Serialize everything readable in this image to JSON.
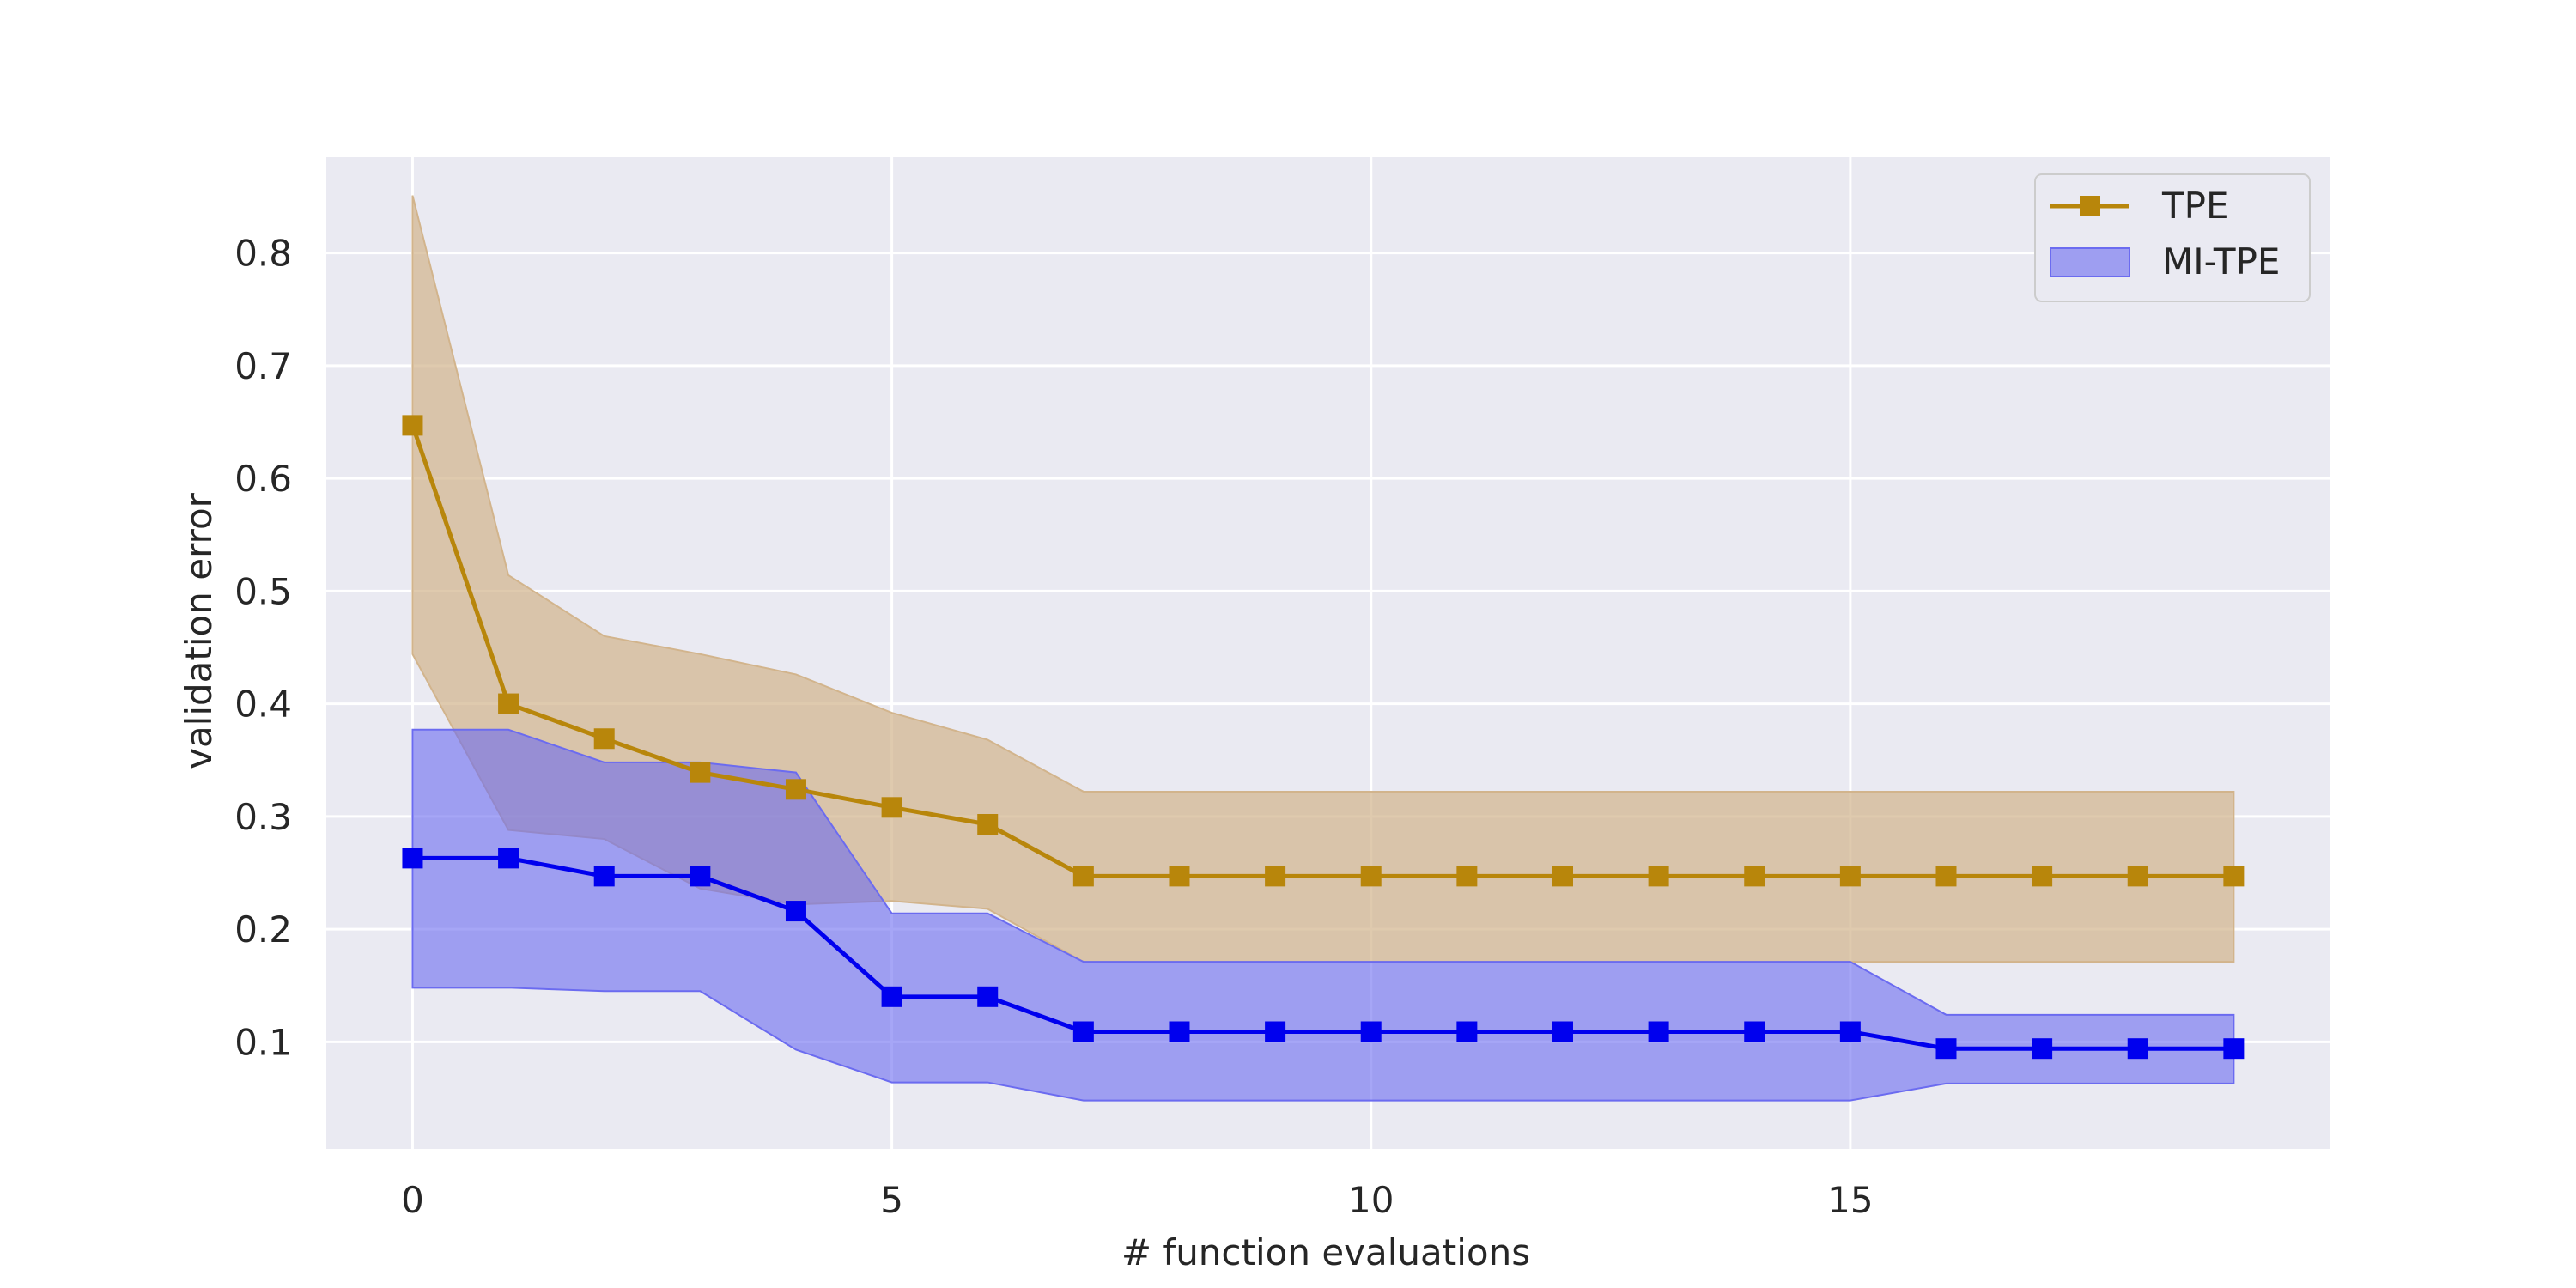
{
  "chart_data": {
    "type": "line",
    "title": "",
    "xlabel": "# function evaluations",
    "ylabel": "validation error",
    "xlim": [
      -0.9,
      20
    ],
    "ylim": [
      0.005,
      0.885
    ],
    "xticks": [
      0,
      5,
      10,
      15
    ],
    "yticks": [
      0.1,
      0.2,
      0.3,
      0.4,
      0.5,
      0.6,
      0.7,
      0.8
    ],
    "xtick_labels": [
      "0",
      "5",
      "10",
      "15"
    ],
    "ytick_labels": [
      "0.1",
      "0.2",
      "0.3",
      "0.4",
      "0.5",
      "0.6",
      "0.7",
      "0.8"
    ],
    "grid": true,
    "legend_position": "top-right",
    "x": [
      0,
      1,
      2,
      3,
      4,
      5,
      6,
      7,
      8,
      9,
      10,
      11,
      12,
      13,
      14,
      15,
      16,
      17,
      18,
      19
    ],
    "series": [
      {
        "name": "TPE",
        "color": "#b8860b",
        "band_color": "#d2b48c",
        "marker": "square",
        "values": [
          0.647,
          0.4,
          0.369,
          0.339,
          0.324,
          0.308,
          0.293,
          0.247,
          0.247,
          0.247,
          0.247,
          0.247,
          0.247,
          0.247,
          0.247,
          0.247,
          0.247,
          0.247,
          0.247,
          0.247
        ],
        "upper": [
          0.851,
          0.514,
          0.46,
          0.444,
          0.426,
          0.392,
          0.368,
          0.322,
          0.322,
          0.322,
          0.322,
          0.322,
          0.322,
          0.322,
          0.322,
          0.322,
          0.322,
          0.322,
          0.322,
          0.322
        ],
        "lower": [
          0.444,
          0.288,
          0.28,
          0.236,
          0.222,
          0.225,
          0.218,
          0.171,
          0.171,
          0.171,
          0.171,
          0.171,
          0.171,
          0.171,
          0.171,
          0.171,
          0.171,
          0.171,
          0.171,
          0.171
        ]
      },
      {
        "name": "MI-TPE",
        "color": "#0000ee",
        "band_color": "#6b6bf0",
        "marker": "square",
        "values": [
          0.263,
          0.263,
          0.247,
          0.247,
          0.216,
          0.14,
          0.14,
          0.109,
          0.109,
          0.109,
          0.109,
          0.109,
          0.109,
          0.109,
          0.109,
          0.109,
          0.094,
          0.094,
          0.094,
          0.094
        ],
        "upper": [
          0.377,
          0.377,
          0.348,
          0.348,
          0.339,
          0.214,
          0.214,
          0.171,
          0.171,
          0.171,
          0.171,
          0.171,
          0.171,
          0.171,
          0.171,
          0.171,
          0.124,
          0.124,
          0.124,
          0.124
        ],
        "lower": [
          0.148,
          0.148,
          0.145,
          0.145,
          0.093,
          0.064,
          0.064,
          0.048,
          0.048,
          0.048,
          0.048,
          0.048,
          0.048,
          0.048,
          0.048,
          0.048,
          0.063,
          0.063,
          0.063,
          0.063
        ]
      }
    ],
    "legend": [
      {
        "label": "TPE",
        "style": "line-marker"
      },
      {
        "label": "MI-TPE",
        "style": "patch"
      }
    ]
  },
  "colors": {
    "plot_background": "#eaeaf2",
    "grid": "#ffffff",
    "text": "#262626"
  }
}
